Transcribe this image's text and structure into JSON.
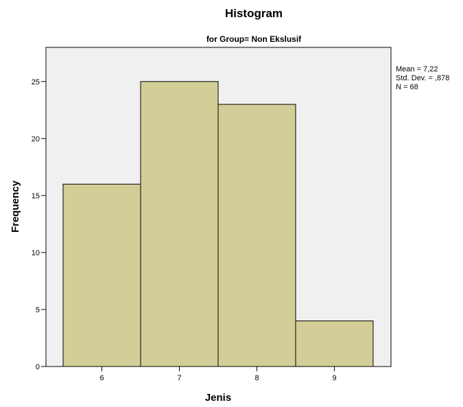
{
  "chart_data": {
    "type": "bar",
    "title": "Histogram",
    "subtitle": "for Group= Non Ekslusif",
    "xlabel": "Jenis",
    "ylabel": "Frequency",
    "categories": [
      "6",
      "7",
      "8",
      "9"
    ],
    "values": [
      16,
      25,
      23,
      4
    ],
    "ylim": [
      0,
      28
    ],
    "yticks": [
      0,
      5,
      10,
      15,
      20,
      25
    ],
    "grid": false,
    "stats": {
      "mean": "Mean = 7,22",
      "std_dev": "Std. Dev. = ,878",
      "n": "N = 68"
    },
    "colors": {
      "plot_background": "#f0f0f0",
      "bar_fill": "#d3ce97",
      "bar_stroke": "#000000"
    }
  }
}
